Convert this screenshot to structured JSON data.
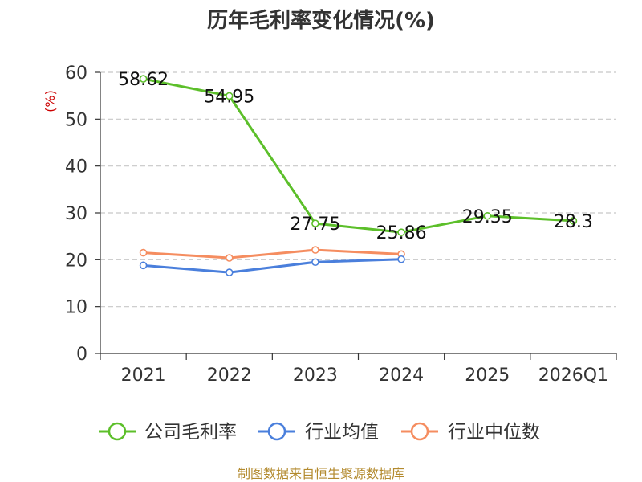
{
  "chart_data": {
    "type": "line",
    "title": "历年毛利率变化情况(%)",
    "ylabel": "(%)",
    "categories": [
      "2021",
      "2022",
      "2023",
      "2024",
      "2025",
      "2026Q1"
    ],
    "yticks": [
      "0",
      "10",
      "20",
      "30",
      "40",
      "50",
      "60"
    ],
    "ylim": [
      0,
      60
    ],
    "grid": true,
    "legend_position": "bottom",
    "series": [
      {
        "name": "公司毛利率",
        "color": "#5cbf2a",
        "values": [
          58.62,
          54.95,
          27.75,
          25.86,
          29.35,
          28.3
        ],
        "labels": [
          "58.62",
          "54.95",
          "27.75",
          "25.86",
          "29.35",
          "28.3"
        ]
      },
      {
        "name": "行业均值",
        "color": "#4a7fdc",
        "values": [
          18.8,
          17.3,
          19.5,
          20.1,
          null,
          null
        ]
      },
      {
        "name": "行业中位数",
        "color": "#f58d60",
        "values": [
          21.5,
          20.4,
          22.1,
          21.2,
          null,
          null
        ]
      }
    ]
  },
  "source_note": "制图数据来自恒生聚源数据库"
}
